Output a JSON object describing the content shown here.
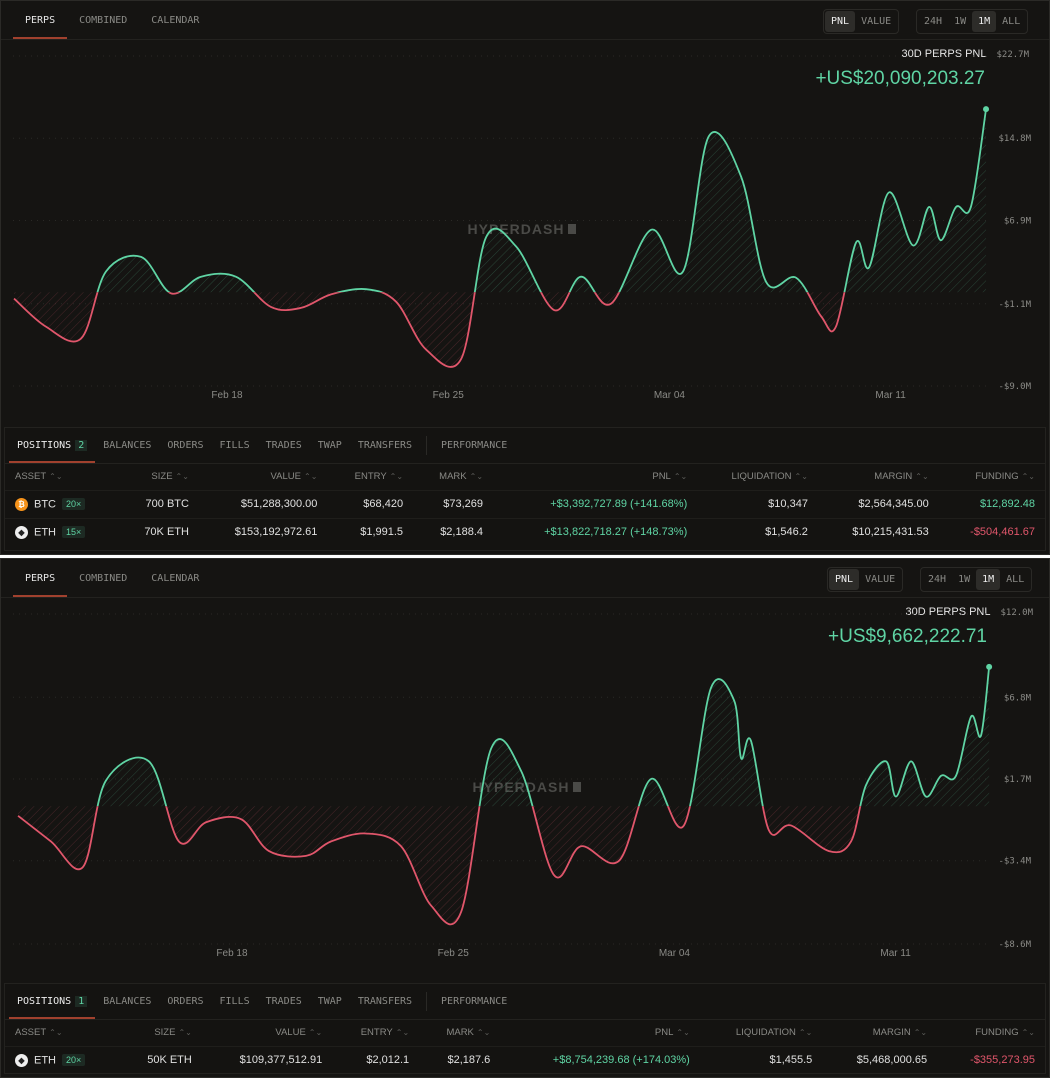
{
  "colors": {
    "green": "#5fd4a4",
    "red": "#e0566b",
    "accent": "#a1412e",
    "bg": "#151412"
  },
  "panels": [
    {
      "tabs": [
        "PERPS",
        "COMBINED",
        "CALENDAR"
      ],
      "mode": [
        "PNL",
        "VALUE"
      ],
      "ranges": [
        "24H",
        "1W",
        "1M",
        "ALL"
      ],
      "chart_title": "30D PERPS PNL",
      "max_label": "$22.7M",
      "pnl_value": "+US$20,090,203.27",
      "watermark": "HYPERDASH",
      "chart_data": {
        "type": "area",
        "ylim": [
          -9.0,
          22.7
        ],
        "unit": "USD millions",
        "x_unit": "days since Feb 11",
        "y_ticks": [
          {
            "label": "$22.7M",
            "value": 22.7
          },
          {
            "label": "$14.8M",
            "value": 14.8
          },
          {
            "label": "$6.9M",
            "value": 6.9
          },
          {
            "label": "-$1.1M",
            "value": -1.1
          },
          {
            "label": "-$9.0M",
            "value": -9.0
          }
        ],
        "x_ticks": [
          {
            "label": "Feb 18",
            "day": 7
          },
          {
            "label": "Feb 25",
            "day": 14
          },
          {
            "label": "Mar 04",
            "day": 21
          },
          {
            "label": "Mar 11",
            "day": 28
          }
        ],
        "points": [
          [
            0.26,
            -0.6
          ],
          [
            1.27,
            -3.3
          ],
          [
            2.38,
            -4.45
          ],
          [
            3.17,
            2.0
          ],
          [
            4.28,
            3.4
          ],
          [
            5.23,
            -0.1
          ],
          [
            6.18,
            1.5
          ],
          [
            7.28,
            1.5
          ],
          [
            8.39,
            -1.4
          ],
          [
            9.34,
            -1.5
          ],
          [
            10.29,
            -0.2
          ],
          [
            11.4,
            0.3
          ],
          [
            12.35,
            -0.9
          ],
          [
            13.3,
            -5.5
          ],
          [
            14.41,
            -6.4
          ],
          [
            15.2,
            5.3
          ],
          [
            16.15,
            4.4
          ],
          [
            17.35,
            -1.7
          ],
          [
            18.2,
            1.5
          ],
          [
            19.15,
            -1.1
          ],
          [
            20.42,
            6.0
          ],
          [
            21.43,
            2.0
          ],
          [
            22.25,
            15.0
          ],
          [
            23.27,
            11.1
          ],
          [
            24.06,
            1.0
          ],
          [
            25.01,
            1.4
          ],
          [
            25.8,
            -2.3
          ],
          [
            26.27,
            -3.3
          ],
          [
            26.91,
            4.8
          ],
          [
            27.32,
            2.4
          ],
          [
            27.95,
            9.6
          ],
          [
            28.71,
            4.5
          ],
          [
            29.22,
            8.2
          ],
          [
            29.59,
            5.0
          ],
          [
            30.07,
            8.2
          ],
          [
            30.54,
            8.2
          ],
          [
            31.02,
            17.6
          ]
        ]
      },
      "positions": {
        "tabs": [
          "POSITIONS",
          "BALANCES",
          "ORDERS",
          "FILLS",
          "TRADES",
          "TWAP",
          "TRANSFERS",
          "PERFORMANCE"
        ],
        "count": "2",
        "columns": [
          "ASSET",
          "SIZE",
          "VALUE",
          "ENTRY",
          "MARK",
          "PNL",
          "LIQUIDATION",
          "MARGIN",
          "FUNDING"
        ],
        "rows": [
          {
            "asset": "BTC",
            "icon": "bitcoin-icon",
            "leverage": "20×",
            "size": "700 BTC",
            "value": "$51,288,300.00",
            "entry": "$68,420",
            "mark": "$73,269",
            "pnl": "+$3,392,727.89 (+141.68%)",
            "liquidation": "$10,347",
            "margin": "$2,564,345.00",
            "funding": "$12,892.48",
            "funding_sign": "pos"
          },
          {
            "asset": "ETH",
            "icon": "ethereum-icon",
            "leverage": "15×",
            "size": "70K ETH",
            "value": "$153,192,972.61",
            "entry": "$1,991.5",
            "mark": "$2,188.4",
            "pnl": "+$13,822,718.27 (+148.73%)",
            "liquidation": "$1,546.2",
            "margin": "$10,215,431.53",
            "funding": "-$504,461.67",
            "funding_sign": "neg"
          }
        ]
      }
    },
    {
      "tabs": [
        "PERPS",
        "COMBINED",
        "CALENDAR"
      ],
      "mode": [
        "PNL",
        "VALUE"
      ],
      "ranges": [
        "24H",
        "1W",
        "1M",
        "ALL"
      ],
      "chart_title": "30D PERPS PNL",
      "max_label": "$12.0M",
      "pnl_value": "+US$9,662,222.71",
      "watermark": "HYPERDASH",
      "chart_data": {
        "type": "area",
        "ylim": [
          -8.6,
          12.0
        ],
        "unit": "USD millions",
        "x_unit": "days since Feb 11",
        "y_ticks": [
          {
            "label": "$12.0M",
            "value": 12.0
          },
          {
            "label": "$6.8M",
            "value": 6.8
          },
          {
            "label": "$1.7M",
            "value": 1.7
          },
          {
            "label": "-$3.4M",
            "value": -3.4
          },
          {
            "label": "-$8.6M",
            "value": -8.6
          }
        ],
        "x_ticks": [
          {
            "label": "Feb 18",
            "day": 7
          },
          {
            "label": "Feb 25",
            "day": 14
          },
          {
            "label": "Mar 04",
            "day": 21
          },
          {
            "label": "Mar 11",
            "day": 28
          }
        ],
        "points": [
          [
            0.23,
            -0.6
          ],
          [
            1.27,
            -2.2
          ],
          [
            2.28,
            -3.8
          ],
          [
            3.01,
            1.6
          ],
          [
            4.37,
            2.8
          ],
          [
            5.32,
            -2.2
          ],
          [
            6.18,
            -1.0
          ],
          [
            7.28,
            -0.8
          ],
          [
            8.17,
            -2.8
          ],
          [
            9.34,
            -3.1
          ],
          [
            10.13,
            -2.2
          ],
          [
            11.24,
            -1.7
          ],
          [
            12.35,
            -2.5
          ],
          [
            13.3,
            -6.2
          ],
          [
            14.25,
            -6.6
          ],
          [
            15.2,
            3.6
          ],
          [
            16.15,
            2.2
          ],
          [
            17.19,
            -4.3
          ],
          [
            18.04,
            -2.5
          ],
          [
            19.25,
            -3.4
          ],
          [
            20.26,
            1.7
          ],
          [
            21.3,
            -1.2
          ],
          [
            22.16,
            7.4
          ],
          [
            22.89,
            6.6
          ],
          [
            23.11,
            3.0
          ],
          [
            23.42,
            4.1
          ],
          [
            23.99,
            -1.5
          ],
          [
            24.69,
            -1.2
          ],
          [
            25.89,
            -2.8
          ],
          [
            26.59,
            -2.2
          ],
          [
            27.06,
            1.3
          ],
          [
            27.7,
            2.8
          ],
          [
            28.01,
            0.6
          ],
          [
            28.49,
            2.8
          ],
          [
            28.96,
            0.6
          ],
          [
            29.44,
            1.9
          ],
          [
            29.91,
            1.9
          ],
          [
            30.39,
            5.6
          ],
          [
            30.7,
            4.4
          ],
          [
            30.96,
            8.7
          ]
        ]
      },
      "positions": {
        "tabs": [
          "POSITIONS",
          "BALANCES",
          "ORDERS",
          "FILLS",
          "TRADES",
          "TWAP",
          "TRANSFERS",
          "PERFORMANCE"
        ],
        "count": "1",
        "columns": [
          "ASSET",
          "SIZE",
          "VALUE",
          "ENTRY",
          "MARK",
          "PNL",
          "LIQUIDATION",
          "MARGIN",
          "FUNDING"
        ],
        "rows": [
          {
            "asset": "ETH",
            "icon": "ethereum-icon",
            "leverage": "20×",
            "size": "50K ETH",
            "value": "$109,377,512.91",
            "entry": "$2,012.1",
            "mark": "$2,187.6",
            "pnl": "+$8,754,239.68 (+174.03%)",
            "liquidation": "$1,455.5",
            "margin": "$5,468,000.65",
            "funding": "-$355,273.95",
            "funding_sign": "neg"
          }
        ]
      }
    }
  ]
}
